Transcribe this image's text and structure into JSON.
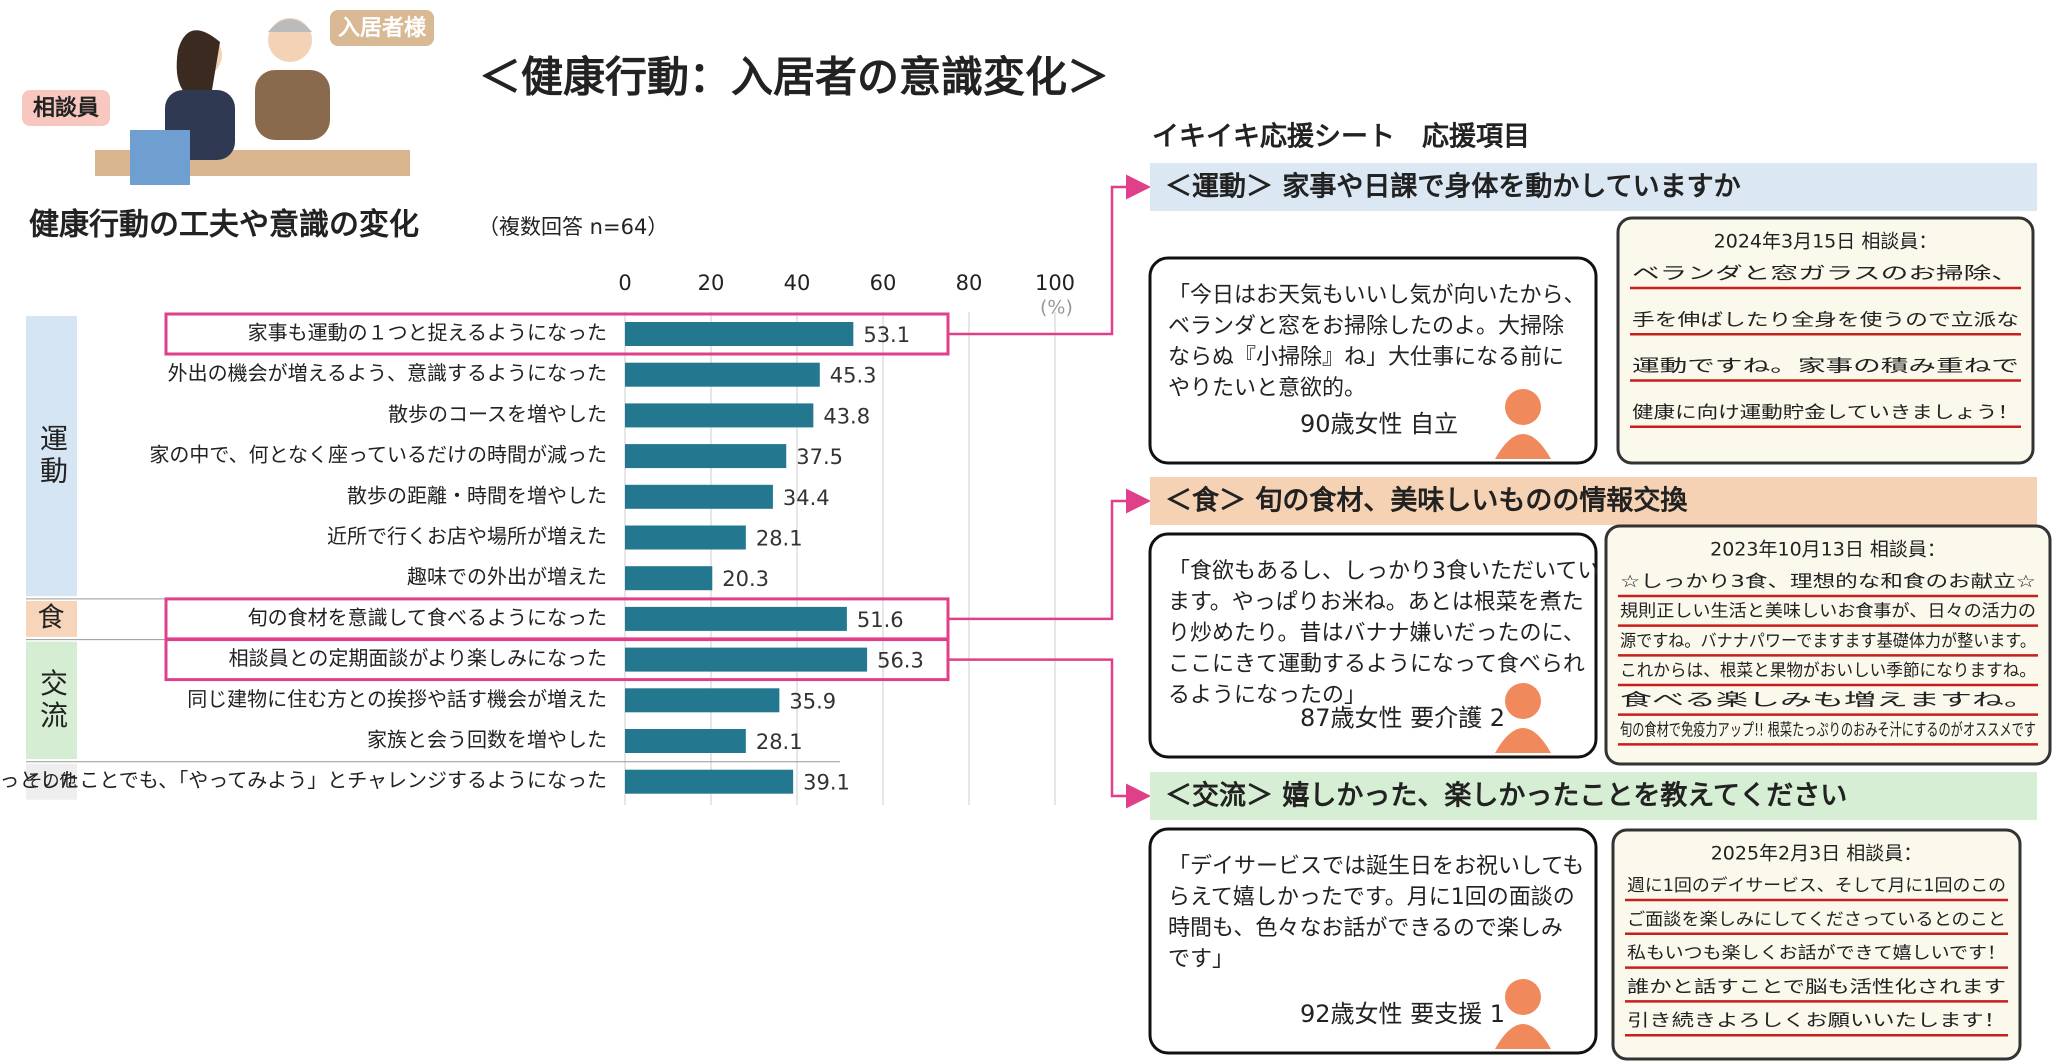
{
  "header": {
    "title": "＜健康行動：入居者の意識変化＞",
    "resident": "入居者様",
    "counselor": "相談員"
  },
  "chart_data": {
    "type": "bar",
    "orientation": "horizontal",
    "title": "健康行動の工夫や意識の変化",
    "subtitle": "（複数回答 n=64）",
    "categories": [
      "家事も運動の１つと捉えるようになった",
      "外出の機会が増えるよう、意識するようになった",
      "散歩のコースを増やした",
      "家の中で、何となく座っているだけの時間が減った",
      "散歩の距離・時間を増やした",
      "近所で行くお店や場所が増えた",
      "趣味での外出が増えた",
      "旬の食材を意識して食べるようになった",
      "相談員との定期面談がより楽しみになった",
      "同じ建物に住む方との挨拶や話す機会が増えた",
      "家族と会う回数を増やした",
      "ちょっとしたことでも、「やってみよう」とチャレンジするようになった"
    ],
    "values": [
      53.1,
      45.3,
      43.8,
      37.5,
      34.4,
      28.1,
      20.3,
      51.6,
      56.3,
      35.9,
      28.1,
      39.1
    ],
    "color": "#23788f",
    "xlim": [
      0,
      100
    ],
    "xticks": [
      0,
      20,
      40,
      60,
      80,
      100
    ],
    "unit": "(%)",
    "grid": true,
    "groups": [
      {
        "label": "運動",
        "size": 7,
        "color": "#d6e5f3"
      },
      {
        "label": "食",
        "size": 1,
        "color": "#f6d5bb"
      },
      {
        "label": "交流",
        "size": 3,
        "color": "#d5eed3"
      },
      {
        "label": "その他",
        "size": 1,
        "color": "#eeeeee"
      }
    ],
    "highlight": [
      0,
      7,
      8
    ],
    "highlight_color": "#e0408a"
  },
  "sheet": {
    "title": "イキイキ応援シート　応援項目",
    "sections": [
      {
        "header": "＜運動＞ 家事や日課で身体を動かしていますか",
        "color": "#dbe8f4",
        "quote": [
          "「今日はお天気もいいし気が向いたから、",
          "ベランダと窓をお掃除したのよ。大掃除",
          "ならぬ『小掃除』ね」大仕事になる前に",
          "やりたいと意欲的。"
        ],
        "speaker": "90歳女性 自立",
        "note": {
          "date": "2024年3月15日 相談員：",
          "lines": [
            "ベランダと窓ガラスのお掃除、",
            "手を伸ばしたり全身を使うので立派な",
            "運動ですね。家事の積み重ねで",
            "健康に向け運動貯金していきましょう！"
          ]
        }
      },
      {
        "header": "＜食＞ 旬の食材、美味しいものの情報交換",
        "color": "#f5d2b3",
        "quote": [
          "「食欲もあるし、しっかり3食いただいてい",
          "ます。やっぱりお米ね。あとは根菜を煮た",
          "り炒めたり。昔はバナナ嫌いだったのに、",
          "ここにきて運動するようになって食べられ",
          "るようになったの」"
        ],
        "speaker": "87歳女性 要介護 2",
        "note": {
          "date": "2023年10月13日 相談員：",
          "lines": [
            "☆しっかり3食、理想的な和食のお献立☆",
            "規則正しい生活と美味しいお食事が、日々の活力の",
            "源ですね。バナナパワーでますます基礎体力が整います。",
            "これからは、根菜と果物がおいしい季節になりますね。",
            "食べる楽しみも増えますね。",
            "旬の食材で免疫力アップ!! 根菜たっぷりのおみそ汁にするのがオススメです"
          ]
        }
      },
      {
        "header": "＜交流＞ 嬉しかった、楽しかったことを教えてください",
        "color": "#d6efd4",
        "quote": [
          "「デイサービスでは誕生日をお祝いしても",
          "らえて嬉しかったです。月に1回の面談の",
          "時間も、色々なお話ができるので楽しみ",
          "です」"
        ],
        "speaker": "92歳女性 要支援 1",
        "note": {
          "date": "2025年2月3日 相談員：",
          "lines": [
            "週に1回のデイサービス、そして月に1回のこの",
            "ご面談を楽しみにしてくださっているとのこと",
            "私もいつも楽しくお話ができて嬉しいです！",
            "誰かと話すことで脳も活性化されます",
            "引き続きよろしくお願いいたします！"
          ]
        }
      }
    ]
  }
}
